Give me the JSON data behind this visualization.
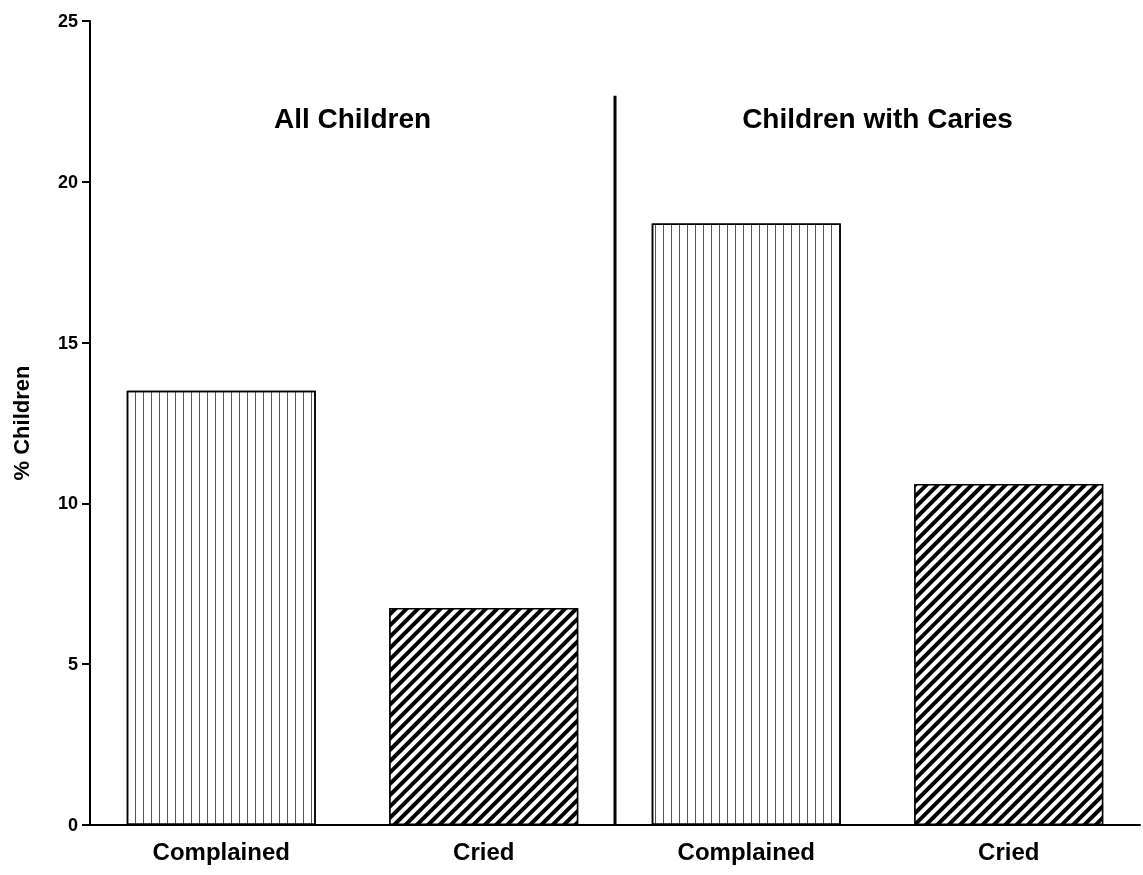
{
  "chart_data": {
    "type": "bar",
    "ylabel": "% Children",
    "categories": [
      "Complained",
      "Cried",
      "Complained",
      "Cried"
    ],
    "values": [
      13.5,
      6.75,
      18.7,
      10.6
    ],
    "colors": [
      "#ffffff",
      "#000000",
      "#ffffff",
      "#000000"
    ],
    "ylim": [
      0,
      25
    ],
    "yticks": [
      0,
      5,
      10,
      15,
      20,
      25
    ],
    "grid": false,
    "annotations": [
      "All Children",
      "Children with Caries"
    ]
  }
}
